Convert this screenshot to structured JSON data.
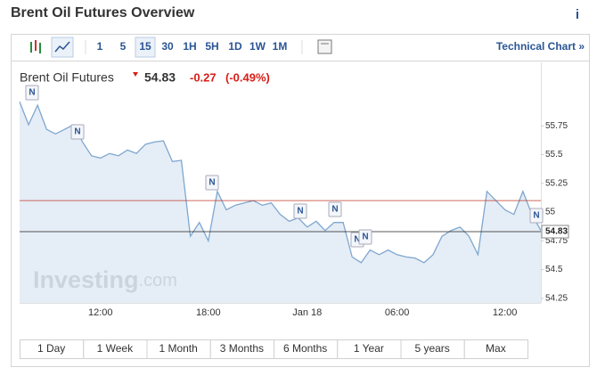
{
  "header": {
    "title": "Brent Oil Futures Overview",
    "info": "i"
  },
  "toolbar": {
    "intervals": [
      "1",
      "5",
      "15",
      "30",
      "1H",
      "5H",
      "1D",
      "1W",
      "1M"
    ],
    "selected_interval": 2,
    "link": "Technical Chart »"
  },
  "quote": {
    "name": "Brent Oil Futures",
    "price": "54.83",
    "change": "-0.27",
    "change_pct": "(-0.49%)"
  },
  "chart_data": {
    "type": "area",
    "watermark": [
      "Investing",
      ".com"
    ],
    "categories": [
      null,
      null,
      null,
      null,
      null,
      null,
      null,
      null,
      null,
      "12:00",
      null,
      null,
      null,
      null,
      null,
      null,
      null,
      null,
      null,
      null,
      null,
      "18:00",
      null,
      null,
      null,
      null,
      null,
      null,
      null,
      null,
      null,
      null,
      "Jan 18",
      null,
      null,
      null,
      null,
      null,
      null,
      null,
      null,
      null,
      "06:00",
      null,
      null,
      null,
      null,
      null,
      null,
      null,
      null,
      null,
      null,
      null,
      "12:00",
      null,
      null,
      null,
      null
    ],
    "values": [
      55.96,
      55.76,
      55.93,
      55.72,
      55.68,
      55.72,
      55.76,
      55.61,
      55.49,
      55.47,
      55.51,
      55.49,
      55.54,
      55.51,
      55.59,
      55.61,
      55.62,
      55.44,
      55.45,
      54.79,
      54.91,
      54.75,
      55.18,
      55.02,
      55.06,
      55.08,
      55.1,
      55.06,
      55.08,
      54.98,
      54.92,
      54.95,
      54.87,
      54.92,
      54.84,
      54.91,
      54.91,
      54.61,
      54.56,
      54.67,
      54.63,
      54.67,
      54.63,
      54.61,
      54.6,
      54.56,
      54.63,
      54.79,
      54.84,
      54.87,
      54.79,
      54.63,
      55.18,
      55.1,
      55.02,
      54.98,
      55.18,
      54.98,
      54.84
    ],
    "color": "#7fa7cf",
    "fill": "#dfe9f4",
    "ylim": [
      54.21,
      56.07
    ],
    "yticks": [
      54.25,
      54.5,
      54.75,
      55,
      55.25,
      55.5,
      55.75
    ],
    "current": {
      "value": 54.83,
      "label": "54.83"
    },
    "prev_close": 55.1,
    "news_markers": [
      "N",
      "N",
      "N",
      "N",
      "N",
      "N",
      "N",
      "N"
    ]
  },
  "ranges": [
    "1 Day",
    "1 Week",
    "1 Month",
    "3 Months",
    "6 Months",
    "1 Year",
    "5 years",
    "Max"
  ]
}
